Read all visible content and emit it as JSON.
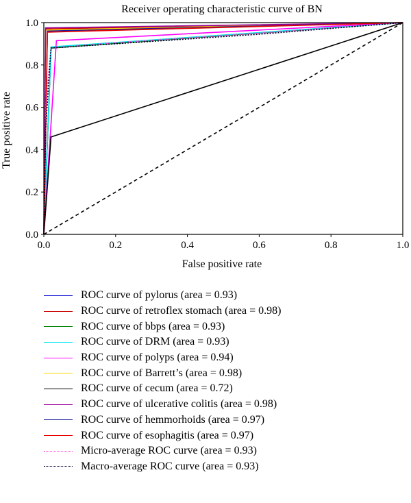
{
  "chart_data": {
    "type": "line",
    "title": "Receiver operating characteristic curve of BN",
    "xlabel": "False positive rate",
    "ylabel": "True positive rate",
    "xlim": [
      0,
      1
    ],
    "ylim": [
      0,
      1
    ],
    "xticks": [
      "0.0",
      "0.2",
      "0.4",
      "0.6",
      "0.8",
      "1.0"
    ],
    "yticks": [
      "0.0",
      "0.2",
      "0.4",
      "0.6",
      "0.8",
      "1.0"
    ],
    "legend_position": "below",
    "series": [
      {
        "name": "ROC curve of pylorus (area = 0.93)",
        "color": "#0000cc",
        "dash": "solid",
        "x": [
          0,
          0.02,
          1
        ],
        "y": [
          0,
          0.88,
          1
        ]
      },
      {
        "name": "ROC curve of retroflex stomach (area = 0.98)",
        "color": "#cc0000",
        "dash": "solid",
        "x": [
          0,
          0.005,
          1
        ],
        "y": [
          0,
          0.97,
          1
        ]
      },
      {
        "name": "ROC curve of bbps (area = 0.93)",
        "color": "#008000",
        "dash": "solid",
        "x": [
          0,
          0.02,
          1
        ],
        "y": [
          0,
          0.88,
          1
        ]
      },
      {
        "name": "ROC curve of DRM (area = 0.93)",
        "color": "#00e5ee",
        "dash": "solid",
        "x": [
          0,
          0.02,
          1
        ],
        "y": [
          0,
          0.885,
          1
        ]
      },
      {
        "name": "ROC curve of polyps (area = 0.94)",
        "color": "#ff00ff",
        "dash": "solid",
        "x": [
          0,
          0.035,
          1
        ],
        "y": [
          0,
          0.915,
          1
        ]
      },
      {
        "name": "ROC curve of Barrett’s (area = 0.98)",
        "color": "#ffd700",
        "dash": "solid",
        "x": [
          0,
          0.005,
          1
        ],
        "y": [
          0,
          0.965,
          1
        ]
      },
      {
        "name": "ROC curve of cecum (area = 0.72)",
        "color": "#000000",
        "dash": "solid",
        "x": [
          0,
          0.02,
          1
        ],
        "y": [
          0,
          0.46,
          1
        ]
      },
      {
        "name": "ROC curve of ulcerative colitis (area = 0.98)",
        "color": "#990099",
        "dash": "solid",
        "x": [
          0,
          0.005,
          1
        ],
        "y": [
          0,
          0.975,
          1
        ]
      },
      {
        "name": "ROC curve of hemmorhoids (area = 0.97)",
        "color": "#1a1a99",
        "dash": "solid",
        "x": [
          0,
          0.01,
          1
        ],
        "y": [
          0,
          0.96,
          1
        ]
      },
      {
        "name": "ROC curve of esophagitis (area = 0.97)",
        "color": "#e60000",
        "dash": "solid",
        "x": [
          0,
          0.01,
          1
        ],
        "y": [
          0,
          0.955,
          1
        ]
      },
      {
        "name": "Micro-average ROC curve (area = 0.93)",
        "color": "#ff33cc",
        "dash": "dotted",
        "x": [
          0,
          0.005,
          0.02,
          0.2,
          0.6,
          1
        ],
        "y": [
          0,
          0.6,
          0.88,
          0.905,
          0.95,
          1
        ]
      },
      {
        "name": "Macro-average ROC curve (area = 0.93)",
        "color": "#000033",
        "dash": "dotted",
        "x": [
          0,
          0.005,
          0.02,
          0.2,
          0.6,
          1
        ],
        "y": [
          0,
          0.5,
          0.88,
          0.9,
          0.945,
          1
        ]
      }
    ],
    "reference_line": {
      "x": [
        0,
        1
      ],
      "y": [
        0,
        1
      ],
      "color": "#000000",
      "dash": "dashed"
    }
  }
}
